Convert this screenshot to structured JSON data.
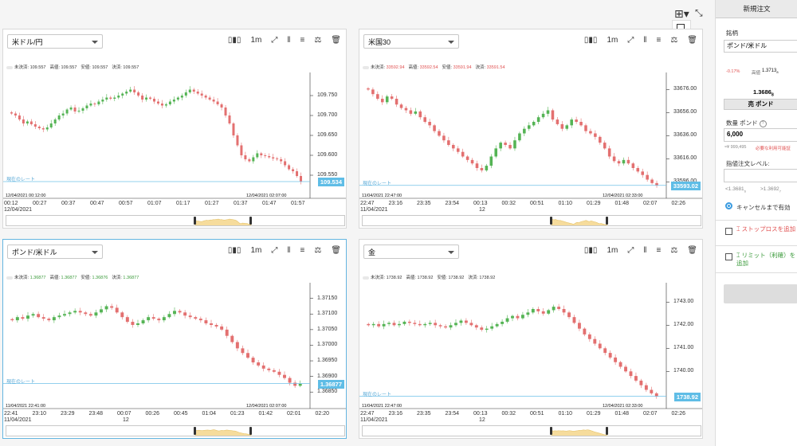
{
  "layout": {
    "grid_icon": "grid-layout-icon",
    "expand_icon": "fullscreen-icon"
  },
  "tool_icons": [
    "chart-type-icon",
    "timeframe-icon",
    "indicator-icon",
    "draw-icon",
    "tools-icon",
    "scale-icon",
    "delete-icon"
  ],
  "common": {
    "ohlc_labels": [
      "未決済:",
      "高値:",
      "安値:",
      "決済:"
    ],
    "rate_label": "現在のレート",
    "timeframe": "1m"
  },
  "panels": [
    {
      "symbol": "米ドル/円",
      "ohlc": [
        "109.557",
        "109.557",
        "109.557",
        "109.557"
      ],
      "ohlc_color": "#333333",
      "price": "109.534",
      "date_left": "12/04/2021 00:12:00",
      "date_right": "12/04/2021 02:07:00",
      "y_ticks": [
        "109.750",
        "109.700",
        "109.650",
        "109.600",
        "109.550"
      ],
      "x_ticks": [
        "00:12",
        "00:27",
        "00:37",
        "00:47",
        "00:57",
        "01:07",
        "01:17",
        "01:27",
        "01:37",
        "01:47",
        "01:57"
      ],
      "x_sub": "12/04/2021",
      "x_sub2": "",
      "chart_data": {
        "type": "candlestick",
        "y_range": [
          109.51,
          109.8
        ],
        "close": [
          109.705,
          109.7,
          109.69,
          109.68,
          109.685,
          109.678,
          109.672,
          109.668,
          109.665,
          109.67,
          109.68,
          109.69,
          109.7,
          109.705,
          109.715,
          109.72,
          109.71,
          109.712,
          109.718,
          109.725,
          109.73,
          109.728,
          109.735,
          109.74,
          109.745,
          109.742,
          109.745,
          109.75,
          109.755,
          109.76,
          109.765,
          109.758,
          109.75,
          109.74,
          109.745,
          109.742,
          109.735,
          109.73,
          109.725,
          109.728,
          109.735,
          109.74,
          109.745,
          109.75,
          109.758,
          109.765,
          109.76,
          109.755,
          109.75,
          109.745,
          109.74,
          109.735,
          109.728,
          109.72,
          109.7,
          109.68,
          109.65,
          109.625,
          109.6,
          109.59,
          109.585,
          109.595,
          109.605,
          109.6,
          109.598,
          109.595,
          109.592,
          109.59,
          109.585,
          109.575,
          109.565,
          109.56,
          109.548,
          109.534
        ]
      }
    },
    {
      "symbol": "米国30",
      "ohlc": [
        "33592.94",
        "33592.54",
        "33591.94",
        "33591.54"
      ],
      "ohlc_color": "#e05050",
      "price": "33593.02",
      "date_left": "11/04/2021 22:47:00",
      "date_right": "12/04/2021 02:33:00",
      "y_ticks": [
        "33676.00",
        "33656.00",
        "33636.00",
        "33616.00",
        "33596.00"
      ],
      "x_ticks": [
        "22:47",
        "23:16",
        "23:35",
        "23:54",
        "00:13",
        "00:32",
        "00:51",
        "01:10",
        "01:29",
        "01:48",
        "02:07",
        "02:26"
      ],
      "x_sub": "11/04/2021",
      "x_sub2": "12",
      "chart_data": {
        "type": "candlestick",
        "y_range": [
          33588,
          33688
        ],
        "close": [
          33676,
          33672,
          33668,
          33665,
          33670,
          33668,
          33663,
          33660,
          33658,
          33655,
          33657,
          33652,
          33648,
          33645,
          33640,
          33636,
          33632,
          33628,
          33625,
          33622,
          33618,
          33615,
          33612,
          33608,
          33606,
          33610,
          33618,
          33625,
          33630,
          33628,
          33625,
          33632,
          33638,
          33642,
          33645,
          33648,
          33652,
          33655,
          33658,
          33650,
          33646,
          33642,
          33645,
          33650,
          33648,
          33645,
          33640,
          33638,
          33635,
          33630,
          33625,
          33618,
          33614,
          33612,
          33615,
          33612,
          33608,
          33605,
          33602,
          33598,
          33595,
          33593
        ]
      }
    },
    {
      "symbol": "ポンド/米ドル",
      "ohlc": [
        "1.36877",
        "1.36877",
        "1.36876",
        "1.36877"
      ],
      "ohlc_color": "#3a9a3a",
      "price": "1.36877",
      "date_left": "11/04/2021 22:41:00",
      "date_right": "12/04/2021 02:07:00",
      "y_ticks": [
        "1.37150",
        "1.37100",
        "1.37050",
        "1.37000",
        "1.36950",
        "1.36900",
        "1.36850"
      ],
      "x_ticks": [
        "22:41",
        "23:10",
        "23:29",
        "23:48",
        "00:07",
        "00:26",
        "00:45",
        "01:04",
        "01:23",
        "01:42",
        "02:01",
        "02:20"
      ],
      "x_sub": "11/04/2021",
      "x_sub2": "12",
      "chart_data": {
        "type": "candlestick",
        "y_range": [
          1.3682,
          1.3719
        ],
        "close": [
          1.3708,
          1.3709,
          1.37085,
          1.37095,
          1.371,
          1.3709,
          1.37085,
          1.3708,
          1.3709,
          1.37095,
          1.371,
          1.37105,
          1.3711,
          1.37105,
          1.371,
          1.37095,
          1.37105,
          1.37115,
          1.37125,
          1.3712,
          1.37105,
          1.3709,
          1.37075,
          1.37065,
          1.3707,
          1.3708,
          1.3709,
          1.37085,
          1.3708,
          1.3709,
          1.371,
          1.3711,
          1.37105,
          1.37095,
          1.3709,
          1.37085,
          1.3708,
          1.3707,
          1.37065,
          1.3706,
          1.3705,
          1.3703,
          1.3701,
          1.3699,
          1.36975,
          1.3696,
          1.36945,
          1.36935,
          1.36925,
          1.3692,
          1.36915,
          1.36905,
          1.36895,
          1.3688,
          1.3687,
          1.36877
        ]
      }
    },
    {
      "symbol": "金",
      "ohlc": [
        "1738.92",
        "1738.92",
        "1738.92",
        "1738.92"
      ],
      "ohlc_color": "#333333",
      "price": "1738.92",
      "date_left": "11/04/2021 22:47:00",
      "date_right": "12/04/2021 02:33:00",
      "y_ticks": [
        "1743.00",
        "1742.00",
        "1741.00",
        "1740.00"
      ],
      "x_ticks": [
        "22:47",
        "23:16",
        "23:35",
        "23:54",
        "00:13",
        "00:32",
        "00:51",
        "01:10",
        "01:29",
        "01:48",
        "02:07",
        "02:26"
      ],
      "x_sub": "11/04/2021",
      "x_sub2": "12",
      "chart_data": {
        "type": "candlestick",
        "y_range": [
          1738.7,
          1743.7
        ],
        "close": [
          1742.0,
          1742.05,
          1741.95,
          1742.05,
          1742.1,
          1742.0,
          1742.05,
          1742.15,
          1742.1,
          1742.05,
          1742.0,
          1742.05,
          1742.1,
          1742.0,
          1741.95,
          1741.9,
          1742.0,
          1742.1,
          1742.2,
          1742.1,
          1742.0,
          1741.9,
          1741.8,
          1741.85,
          1741.95,
          1742.05,
          1742.15,
          1742.3,
          1742.4,
          1742.3,
          1742.45,
          1742.55,
          1742.7,
          1742.6,
          1742.5,
          1742.65,
          1742.8,
          1742.7,
          1742.55,
          1742.35,
          1742.1,
          1741.85,
          1741.6,
          1741.4,
          1741.2,
          1741.0,
          1740.8,
          1740.6,
          1740.4,
          1740.2,
          1740.0,
          1739.8,
          1739.6,
          1739.4,
          1739.2,
          1739.05,
          1738.92
        ]
      }
    }
  ],
  "sidebar": {
    "title": "新規注文",
    "symbol_label": "銘柄",
    "symbol_value": "ポンド/米ドル",
    "change": "-0.17%",
    "high_label": "高値",
    "high_value": "1.3713",
    "high_sup": "8",
    "bid": "1.3686",
    "bid_sup": "8",
    "sell_label": "売 ポンド",
    "qty_label": "数量 ポンド",
    "qty_value": "6,000",
    "margin_info": "≈¥ 999,495",
    "margin_label": "必要な利用可能証",
    "limit_label": "指値注文レベル:",
    "limit_low": "<1.3681",
    "limit_low_sup": "6",
    "limit_high": ">1.3692",
    "limit_high_sup": "7",
    "validity_label": "キャンセルまで有効",
    "stop_loss_label": "ストップロスを追加",
    "limit_profit_label": "リミット（利確）を追加"
  }
}
